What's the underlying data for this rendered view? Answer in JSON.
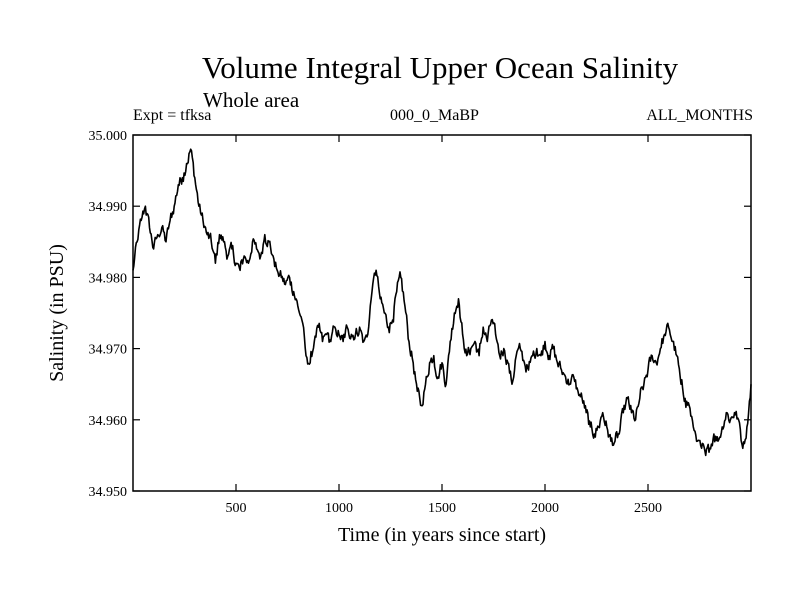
{
  "chart_data": {
    "type": "line",
    "title": "Volume Integral Upper Ocean Salinity",
    "subtitle": "Whole area",
    "expt_label": "Expt = tfksa",
    "period_label": "000_0_MaBP",
    "months_label": "ALL_MONTHS",
    "xlabel": "Time (in years since start)",
    "ylabel": "Salinity (in PSU)",
    "xlim": [
      0,
      3000
    ],
    "ylim": [
      34.95,
      35.0
    ],
    "x_ticks": [
      500,
      1000,
      1500,
      2000,
      2500
    ],
    "y_ticks": [
      34.95,
      34.96,
      34.97,
      34.98,
      34.99,
      35.0
    ],
    "x_tick_labels": [
      "500",
      "1000",
      "1500",
      "2000",
      "2500"
    ],
    "y_tick_labels": [
      "34.950",
      "34.960",
      "34.970",
      "34.980",
      "34.990",
      "35.000"
    ],
    "series": [
      {
        "name": "salinity",
        "x": [
          0,
          20,
          40,
          60,
          80,
          100,
          120,
          140,
          160,
          180,
          200,
          220,
          240,
          260,
          280,
          300,
          320,
          340,
          360,
          380,
          400,
          420,
          440,
          460,
          480,
          500,
          520,
          540,
          560,
          580,
          600,
          620,
          640,
          660,
          680,
          700,
          720,
          740,
          760,
          780,
          800,
          820,
          840,
          860,
          880,
          900,
          920,
          940,
          960,
          980,
          1000,
          1020,
          1040,
          1060,
          1080,
          1100,
          1120,
          1140,
          1160,
          1180,
          1200,
          1220,
          1240,
          1260,
          1280,
          1300,
          1320,
          1340,
          1360,
          1380,
          1400,
          1420,
          1440,
          1460,
          1480,
          1500,
          1520,
          1540,
          1560,
          1580,
          1600,
          1620,
          1640,
          1660,
          1680,
          1700,
          1720,
          1740,
          1760,
          1780,
          1800,
          1820,
          1840,
          1860,
          1880,
          1900,
          1920,
          1940,
          1960,
          1980,
          2000,
          2020,
          2040,
          2060,
          2080,
          2100,
          2120,
          2140,
          2160,
          2180,
          2200,
          2220,
          2240,
          2260,
          2280,
          2300,
          2320,
          2340,
          2360,
          2380,
          2400,
          2420,
          2440,
          2460,
          2480,
          2500,
          2520,
          2540,
          2560,
          2580,
          2600,
          2620,
          2640,
          2660,
          2680,
          2700,
          2720,
          2740,
          2760,
          2780,
          2800,
          2820,
          2840,
          2860,
          2880,
          2900,
          2920,
          2940,
          2960,
          2980,
          3000
        ],
        "values": [
          34.981,
          34.985,
          34.988,
          34.99,
          34.987,
          34.984,
          34.986,
          34.987,
          34.985,
          34.988,
          34.99,
          34.993,
          34.994,
          34.996,
          34.998,
          34.994,
          34.99,
          34.988,
          34.986,
          34.985,
          34.982,
          34.986,
          34.985,
          34.983,
          34.984,
          34.982,
          34.981,
          34.983,
          34.982,
          34.985,
          34.984,
          34.983,
          34.986,
          34.985,
          34.983,
          34.981,
          34.98,
          34.979,
          34.98,
          34.978,
          34.976,
          34.974,
          34.969,
          34.968,
          34.971,
          34.973,
          34.971,
          34.972,
          34.971,
          34.973,
          34.972,
          34.971,
          34.973,
          34.972,
          34.972,
          34.973,
          34.971,
          34.972,
          34.978,
          34.981,
          34.977,
          34.975,
          34.973,
          34.974,
          34.978,
          34.98,
          34.976,
          34.971,
          34.968,
          34.964,
          34.962,
          34.965,
          34.968,
          34.969,
          34.966,
          34.968,
          34.965,
          34.971,
          34.975,
          34.977,
          34.972,
          34.969,
          34.97,
          34.971,
          34.969,
          34.973,
          34.971,
          34.974,
          34.972,
          34.969,
          34.97,
          34.968,
          34.965,
          34.969,
          34.97,
          34.968,
          34.967,
          34.969,
          34.97,
          34.969,
          34.971,
          34.969,
          34.97,
          34.968,
          34.967,
          34.966,
          34.965,
          34.966,
          34.964,
          34.963,
          34.961,
          34.959,
          34.958,
          34.959,
          34.961,
          34.959,
          34.957,
          34.957,
          34.958,
          34.961,
          34.963,
          34.961,
          34.96,
          34.963,
          34.965,
          34.967,
          34.969,
          34.968,
          34.97,
          34.972,
          34.973,
          34.971,
          34.969,
          34.965,
          34.963,
          34.962,
          34.959,
          34.957,
          34.956,
          34.955,
          34.956,
          34.958,
          34.957,
          34.959,
          34.961,
          34.96,
          34.961,
          34.96,
          34.956,
          34.959,
          34.965
        ]
      }
    ]
  }
}
